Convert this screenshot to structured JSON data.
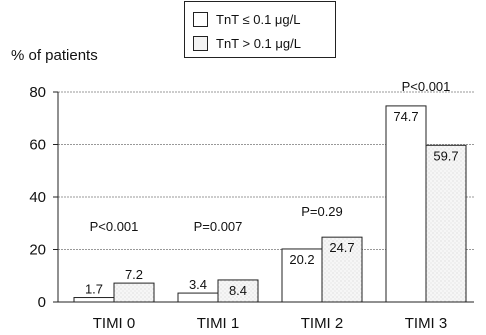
{
  "chart_data": {
    "type": "bar",
    "ylabel": "% of patients",
    "ylim": [
      0,
      80
    ],
    "yticks": [
      "0",
      "20",
      "40",
      "60",
      "80"
    ],
    "categories": [
      "TIMI 0",
      "TIMI 1",
      "TIMI 2",
      "TIMI 3"
    ],
    "series": [
      {
        "name": "TnT ≤ 0.1 μg/L",
        "values": [
          1.7,
          3.4,
          20.2,
          74.7
        ],
        "labels": [
          "1.7",
          "3.4",
          "20.2",
          "74.7"
        ],
        "fill": "#ffffff"
      },
      {
        "name": "TnT > 0.1 μg/L",
        "values": [
          7.2,
          8.4,
          24.7,
          59.7
        ],
        "labels": [
          "7.2",
          "8.4",
          "24.7",
          "59.7"
        ],
        "fill": "#f3f3f3"
      }
    ],
    "pvalues": [
      "P<0.001",
      "P=0.007",
      "P=0.29",
      "P<0.001"
    ],
    "grid": true,
    "legend_position": "top"
  },
  "colors": {
    "line": "#222222",
    "grid": "#999999"
  }
}
